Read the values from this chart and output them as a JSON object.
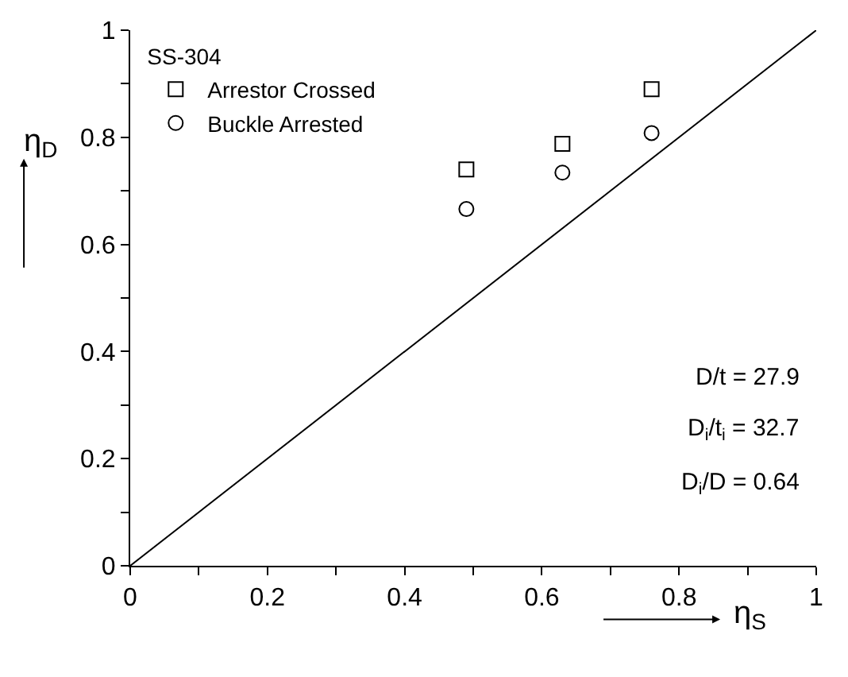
{
  "chart_data": {
    "type": "scatter",
    "xlabel": "η$_{S}$",
    "ylabel": "η$_{D}$",
    "legend_title": "SS-304",
    "x": [
      0.49,
      0.63,
      0.76
    ],
    "series": [
      {
        "name": "Arrestor Crossed",
        "color": "#000000",
        "values": [
          0.74,
          0.788,
          0.89
        ],
        "marker": "square"
      },
      {
        "name": "Buckle Arrested",
        "color": "#000000",
        "values": [
          0.666,
          0.734,
          0.808
        ],
        "marker": "circle"
      },
      {
        "type": "line",
        "color": "#000000",
        "x": [
          0,
          1
        ],
        "values": [
          0,
          1
        ],
        "marker": "none"
      }
    ],
    "annotations": [
      "D/t = 27.9",
      "D$_{i}$/t$_{i}$ = 32.7",
      "D$_{i}$/D = 0.64"
    ],
    "xlim": [
      0,
      1
    ],
    "ylim": [
      0,
      1
    ],
    "xticks": [
      0,
      {
        "value": 0.1,
        "label": null
      },
      0.2,
      {
        "value": 0.3,
        "label": null
      },
      0.4,
      {
        "value": 0.5,
        "label": null
      },
      0.6,
      {
        "value": 0.7,
        "label": null
      },
      0.8,
      {
        "value": 0.9,
        "label": null
      },
      1
    ],
    "yticks": [
      0,
      {
        "value": 0.1,
        "label": null
      },
      0.2,
      {
        "value": 0.3,
        "label": null
      },
      0.4,
      {
        "value": 0.5,
        "label": null
      },
      0.6,
      {
        "value": 0.7,
        "label": null
      },
      0.8,
      {
        "value": 0.9,
        "label": null
      },
      1
    ],
    "legend": "top left"
  }
}
